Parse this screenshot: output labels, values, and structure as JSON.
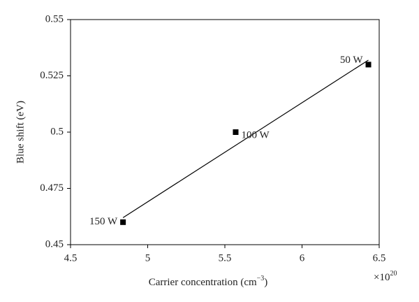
{
  "chart_data": {
    "type": "scatter",
    "xlabel": "Carrier concentration (cm",
    "xlabel_exponent": "−3",
    "xlabel_end": ")",
    "x_multiplier": "×10",
    "x_multiplier_exponent": "20",
    "ylabel": "Blue shift (eV)",
    "xlim": [
      4.5,
      6.5
    ],
    "xticks": [
      4.5,
      5,
      5.5,
      6,
      6.5
    ],
    "ylim": [
      0.45,
      0.55
    ],
    "yticks": [
      0.45,
      0.475,
      0.5,
      0.525,
      0.55
    ],
    "points": {
      "x": [
        4.84,
        5.57,
        6.43
      ],
      "values": [
        0.46,
        0.5,
        0.53
      ],
      "labels": [
        "150 W",
        "100 W",
        "50 W"
      ],
      "color": "#000000"
    },
    "fit_line": {
      "x": [
        4.84,
        6.43
      ],
      "values": [
        0.462,
        0.532
      ],
      "color": "#000000"
    }
  }
}
